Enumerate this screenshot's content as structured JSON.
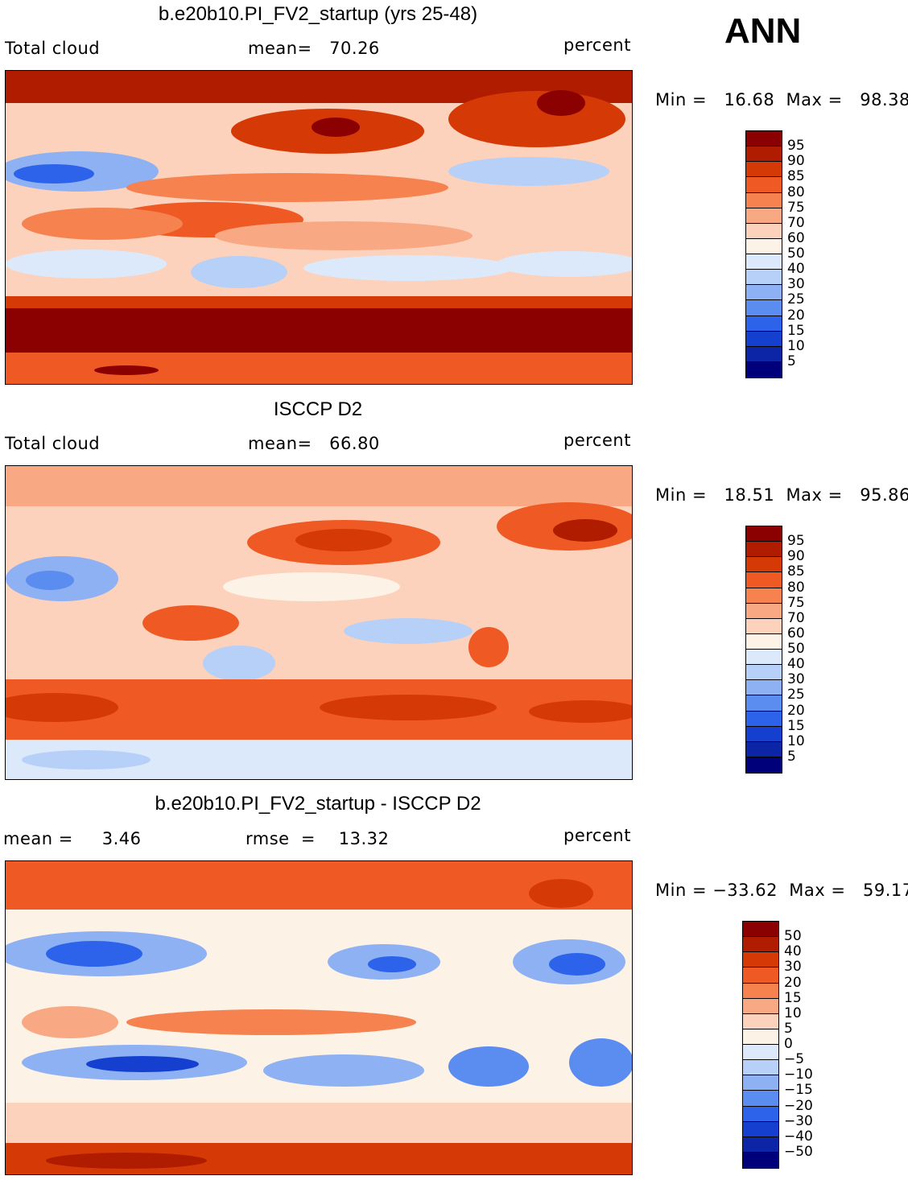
{
  "season": "ANN",
  "palette_main": [
    "#8b0000",
    "#b31d00",
    "#d93a00",
    "#f0551e",
    "#f5763e",
    "#f8a27a",
    "#fbd0b5",
    "#fdf2e8",
    "#d9e9fb",
    "#b2cdf6",
    "#85acf2",
    "#4a82f0",
    "#1c56e6",
    "#0f36c2",
    "#0a1e9c",
    "#00006b"
  ],
  "panels": [
    {
      "title": "b.e20b10.PI_FV2_startup (yrs 25-48)",
      "left_label": "Total cloud",
      "mean_text": "mean=   70.26",
      "units": "percent",
      "minmax": "Min =   16.68  Max =   98.38",
      "colorbar_labels": [
        "95",
        "90",
        "85",
        "80",
        "75",
        "70",
        "60",
        "50",
        "40",
        "30",
        "25",
        "20",
        "15",
        "10",
        "5"
      ],
      "colors": [
        "#8b0000",
        "#b01c00",
        "#d53a06",
        "#ef5a24",
        "#f5824f",
        "#f9a884",
        "#fcd2bc",
        "#fdf2e6",
        "#dce9fb",
        "#b6d0f7",
        "#8db1f3",
        "#5b8cef",
        "#2c63ea",
        "#153fcf",
        "#0b25a6",
        "#00007a"
      ]
    },
    {
      "title": "ISCCP D2",
      "left_label": "Total cloud",
      "mean_text": "mean=   66.80",
      "units": "percent",
      "minmax": "Min =   18.51  Max =   95.86",
      "colorbar_labels": [
        "95",
        "90",
        "85",
        "80",
        "75",
        "70",
        "60",
        "50",
        "40",
        "30",
        "25",
        "20",
        "15",
        "10",
        "5"
      ],
      "colors": [
        "#8b0000",
        "#b01c00",
        "#d53a06",
        "#ef5a24",
        "#f5824f",
        "#f9a884",
        "#fcd2bc",
        "#fdf2e6",
        "#dce9fb",
        "#b6d0f7",
        "#8db1f3",
        "#5b8cef",
        "#2c63ea",
        "#153fcf",
        "#0b25a6",
        "#00007a"
      ]
    },
    {
      "title": "b.e20b10.PI_FV2_startup - ISCCP D2",
      "left_label": "mean =     3.46",
      "mean_text": "rmse  =    13.32",
      "units": "percent",
      "minmax": "Min = −33.62  Max =   59.17",
      "colorbar_labels": [
        "50",
        "40",
        "30",
        "20",
        "15",
        "10",
        "5",
        "0",
        "−5",
        "−10",
        "−15",
        "−20",
        "−30",
        "−40",
        "−50"
      ],
      "colors": [
        "#8b0000",
        "#b01c00",
        "#d53a06",
        "#ef5a24",
        "#f5824f",
        "#f9a884",
        "#fcd2bc",
        "#fdf2e6",
        "#dce9fb",
        "#b6d0f7",
        "#8db1f3",
        "#5b8cef",
        "#2c63ea",
        "#153fcf",
        "#0b25a6",
        "#00007a"
      ]
    }
  ]
}
